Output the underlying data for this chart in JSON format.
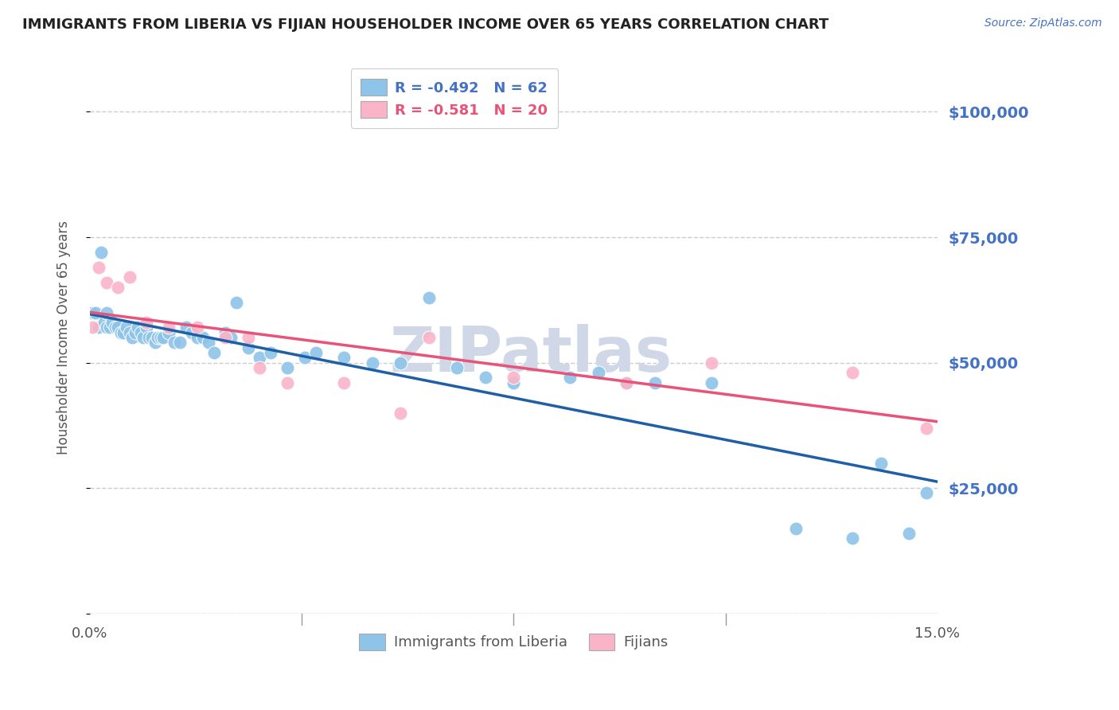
{
  "title": "IMMIGRANTS FROM LIBERIA VS FIJIAN HOUSEHOLDER INCOME OVER 65 YEARS CORRELATION CHART",
  "source": "Source: ZipAtlas.com",
  "ylabel": "Householder Income Over 65 years",
  "xlim": [
    0.0,
    15.0
  ],
  "ylim": [
    0,
    110000
  ],
  "yticks": [
    0,
    25000,
    50000,
    75000,
    100000
  ],
  "ytick_labels": [
    "",
    "$25,000",
    "$50,000",
    "$75,000",
    "$100,000"
  ],
  "legend_liberia_r": "R = -0.492",
  "legend_liberia_n": "N = 62",
  "legend_fijian_r": "R = -0.581",
  "legend_fijian_n": "N = 20",
  "color_liberia": "#8ec4e8",
  "color_fijian": "#f9b4c8",
  "color_liberia_line": "#1f5fa6",
  "color_fijian_line": "#e8537a",
  "color_title": "#222222",
  "color_axis_label": "#555555",
  "color_ytick": "#4472C4",
  "color_source": "#4472C4",
  "background_color": "#ffffff",
  "grid_color": "#cccccc",
  "watermark_color": "#d0d8e8",
  "liberia_x": [
    0.05,
    0.1,
    0.15,
    0.2,
    0.25,
    0.3,
    0.3,
    0.35,
    0.4,
    0.45,
    0.5,
    0.55,
    0.6,
    0.65,
    0.7,
    0.75,
    0.8,
    0.85,
    0.9,
    0.95,
    1.0,
    1.05,
    1.1,
    1.15,
    1.2,
    1.25,
    1.3,
    1.4,
    1.5,
    1.6,
    1.7,
    1.8,
    1.9,
    2.0,
    2.1,
    2.2,
    2.4,
    2.5,
    2.6,
    2.8,
    3.0,
    3.2,
    3.5,
    3.8,
    4.0,
    4.5,
    5.0,
    5.5,
    6.0,
    6.5,
    7.0,
    7.5,
    8.5,
    9.0,
    9.5,
    10.0,
    11.0,
    12.5,
    13.5,
    14.0,
    14.5,
    14.8
  ],
  "liberia_y": [
    60000,
    60000,
    57000,
    72000,
    58000,
    60000,
    57000,
    57000,
    58000,
    57000,
    57000,
    56000,
    56000,
    57000,
    56000,
    55000,
    56000,
    57000,
    56000,
    55000,
    57000,
    55000,
    55000,
    54000,
    55000,
    55000,
    55000,
    56000,
    54000,
    54000,
    57000,
    56000,
    55000,
    55000,
    54000,
    52000,
    56000,
    55000,
    62000,
    53000,
    51000,
    52000,
    49000,
    51000,
    52000,
    51000,
    50000,
    50000,
    63000,
    49000,
    47000,
    46000,
    47000,
    48000,
    46000,
    46000,
    46000,
    17000,
    15000,
    30000,
    16000,
    24000
  ],
  "fijian_x": [
    0.05,
    0.15,
    0.3,
    0.5,
    0.7,
    1.0,
    1.4,
    1.9,
    2.4,
    2.8,
    3.0,
    3.5,
    4.5,
    5.5,
    6.0,
    7.5,
    9.5,
    11.0,
    13.5,
    14.8
  ],
  "fijian_y": [
    57000,
    69000,
    66000,
    65000,
    67000,
    58000,
    57000,
    57000,
    55000,
    55000,
    49000,
    46000,
    46000,
    40000,
    55000,
    47000,
    46000,
    50000,
    48000,
    37000
  ]
}
